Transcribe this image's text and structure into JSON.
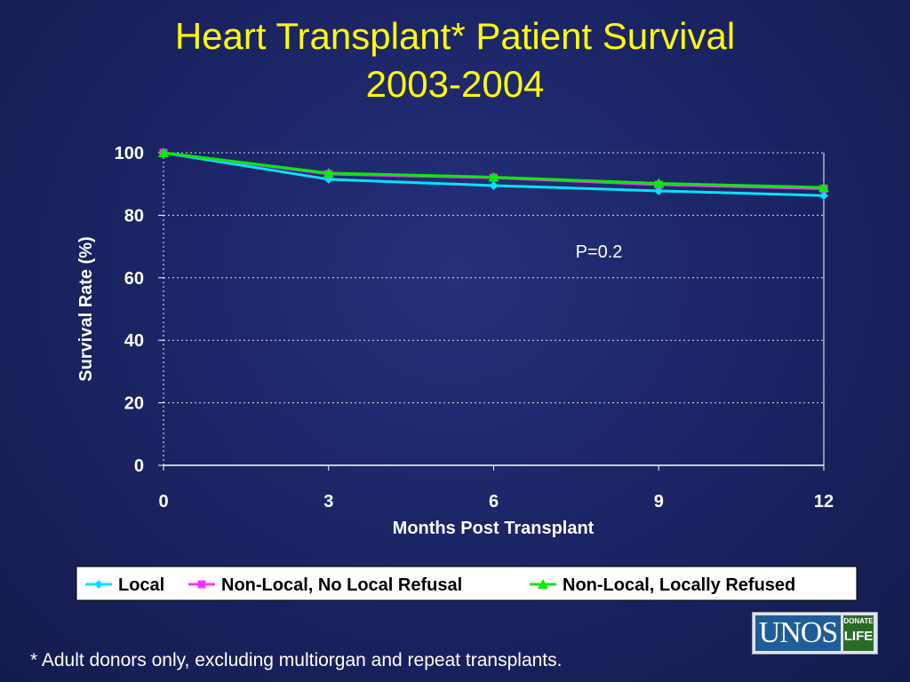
{
  "slide": {
    "title_line1": "Heart Transplant* Patient Survival",
    "title_line2": "2003-2004",
    "footnote": "* Adult donors only, excluding multiorgan and repeat transplants."
  },
  "logo": {
    "name": "UNOS",
    "badge_line1": "DONATE",
    "badge_line2": "LIFE"
  },
  "chart_data": {
    "type": "line",
    "title": "Heart Transplant* Patient Survival 2003-2004",
    "xlabel": "Months Post Transplant",
    "ylabel": "Survival Rate (%)",
    "x": [
      0,
      3,
      6,
      9,
      12
    ],
    "x_tick_labels": [
      "0",
      "3",
      "6",
      "9",
      "12"
    ],
    "ylim": [
      0,
      100
    ],
    "y_ticks": [
      0,
      20,
      40,
      60,
      80,
      100
    ],
    "grid": "horizontal dotted",
    "annotation": "P=0.2",
    "legend_position": "bottom",
    "series": [
      {
        "name": "Local",
        "values": [
          100,
          91.5,
          89.5,
          87.8,
          86.3
        ],
        "color": "#00e5ff",
        "marker": "diamond"
      },
      {
        "name": "Non-Local, No Local Refusal",
        "values": [
          100,
          93.2,
          92.0,
          89.8,
          88.5
        ],
        "color": "#ff33ff",
        "marker": "square"
      },
      {
        "name": "Non-Local, Locally Refused",
        "values": [
          100,
          93.5,
          92.2,
          90.2,
          88.9
        ],
        "color": "#00ee00",
        "marker": "triangle"
      }
    ]
  }
}
